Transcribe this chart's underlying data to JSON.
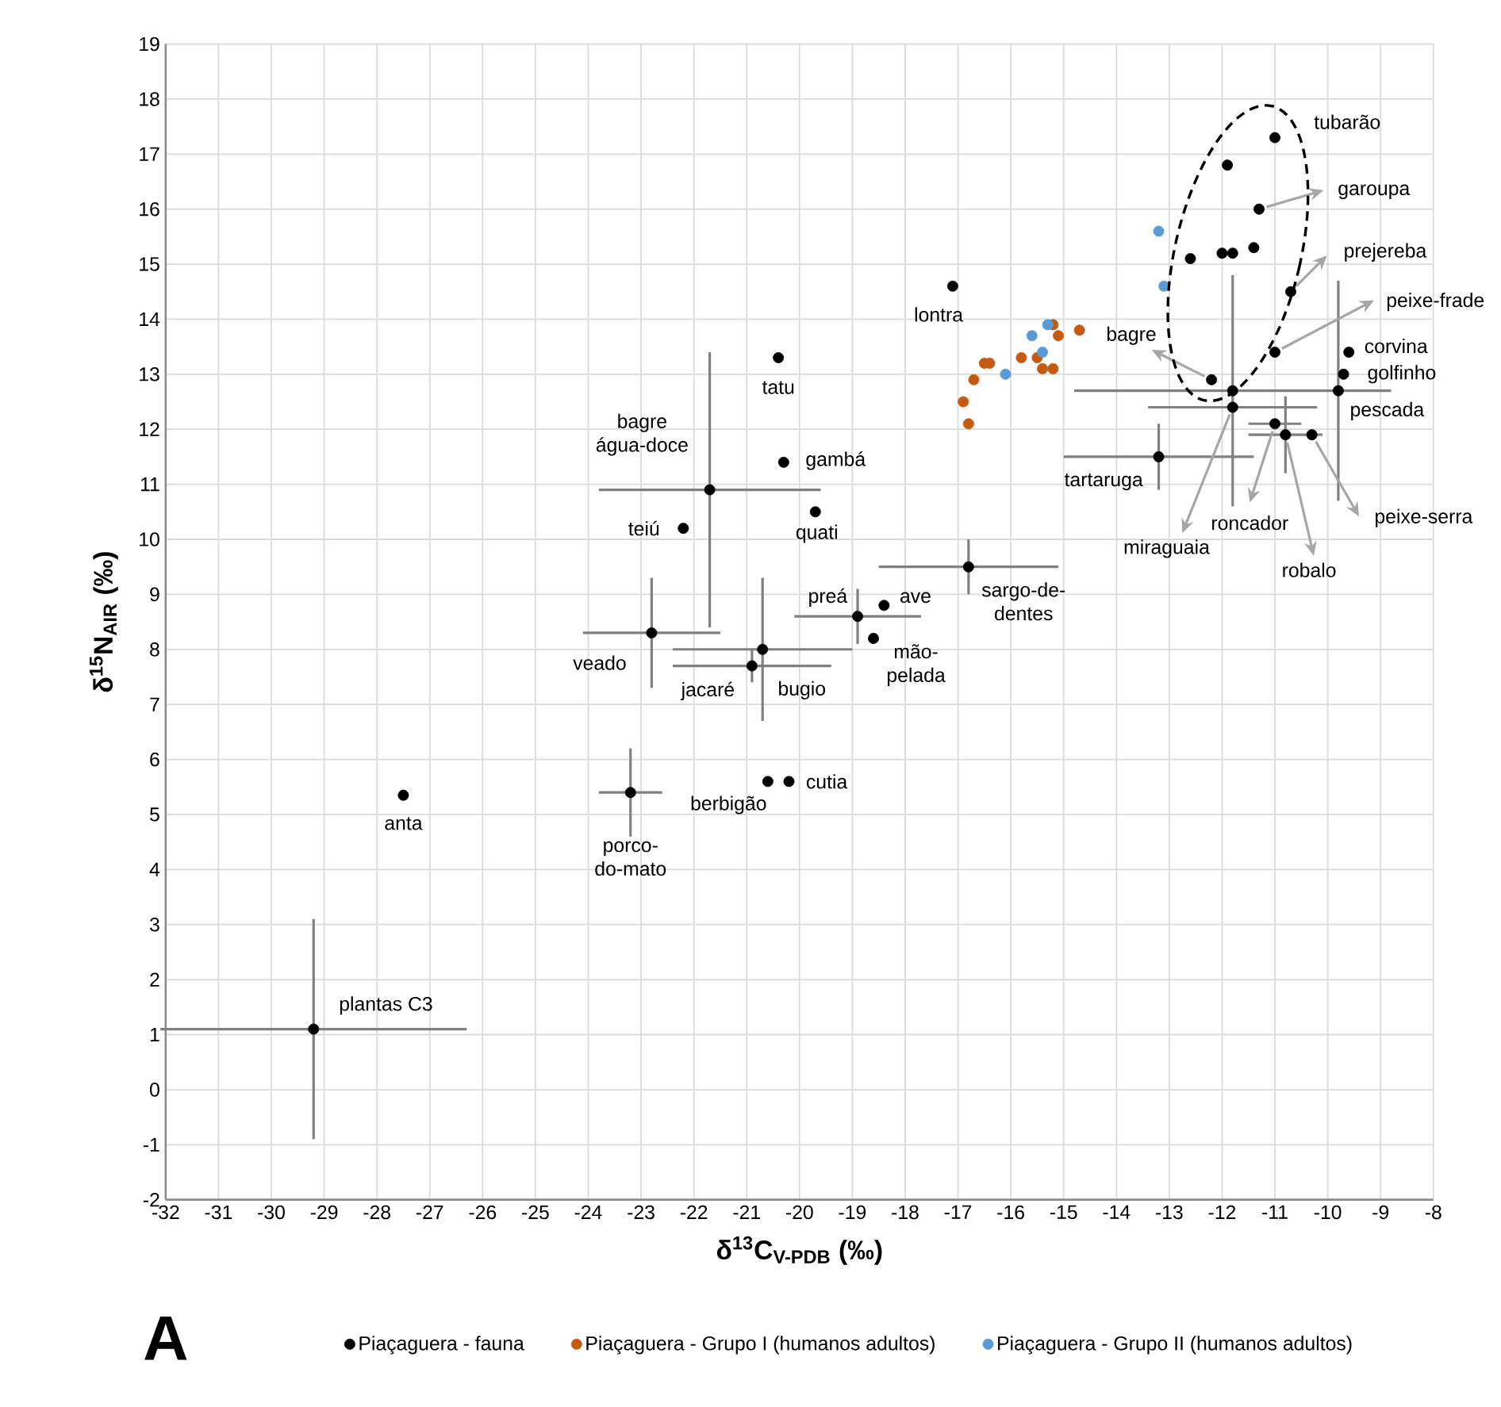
{
  "chart_data": {
    "type": "scatter",
    "title": "A",
    "xlabel": "δ$^{13}$C$_{V-PDB}$ (‰)",
    "ylabel": "δ$^{15}$N$_{AIR}$ (‰)",
    "xlim": [
      -32,
      -8
    ],
    "ylim": [
      -2,
      19
    ],
    "xticks": [
      -32,
      -31,
      -30,
      -29,
      -28,
      -27,
      -26,
      -25,
      -24,
      -23,
      -22,
      -21,
      -20,
      -19,
      -18,
      -17,
      -16,
      -15,
      -14,
      -13,
      -12,
      -11,
      -10,
      -9,
      -8
    ],
    "yticks": [
      -2,
      -1,
      0,
      1,
      2,
      3,
      4,
      5,
      6,
      7,
      8,
      9,
      10,
      11,
      12,
      13,
      14,
      15,
      16,
      17,
      18,
      19
    ],
    "grid": true,
    "legend": "bottom",
    "marker": "circle",
    "series": [
      {
        "name": "Piaçaguera - fauna",
        "color": "#000000",
        "x": [
          -27.5,
          -29.2,
          -23.2,
          -20.6,
          -20.2,
          -20.9,
          -20.7,
          -22.8,
          -21.7,
          -22.2,
          -20.4,
          -20.3,
          -19.7,
          -18.9,
          -18.4,
          -18.6,
          -16.8,
          -17.1,
          -13.2,
          -11.8,
          -11.8,
          -11.0,
          -10.8,
          -10.3,
          -9.8,
          -9.7,
          -9.6,
          -11.0,
          -12.2,
          -10.7,
          -11.3,
          -11.0,
          -11.9,
          -12.6,
          -12.0,
          -11.8,
          -11.4
        ],
        "values": [
          5.35,
          1.1,
          5.4,
          5.6,
          5.6,
          7.7,
          8.0,
          8.3,
          10.9,
          10.2,
          13.3,
          11.4,
          10.5,
          8.6,
          8.8,
          8.2,
          9.5,
          14.6,
          11.5,
          12.7,
          12.4,
          12.1,
          11.9,
          11.9,
          12.7,
          13.0,
          13.4,
          13.4,
          12.9,
          14.5,
          16.0,
          17.3,
          16.8,
          15.1,
          15.2,
          15.2,
          15.3
        ],
        "xerrors": [
          null,
          2.9,
          0.6,
          null,
          null,
          1.5,
          1.7,
          1.3,
          2.1,
          null,
          null,
          null,
          null,
          1.2,
          null,
          null,
          1.7,
          null,
          1.8,
          3.0,
          1.6,
          0.5,
          0.7,
          null,
          null,
          null,
          null,
          null,
          null,
          null,
          null,
          null,
          null,
          null,
          null,
          null,
          null
        ],
        "errors": [
          null,
          2.0,
          0.8,
          null,
          null,
          0.3,
          1.3,
          1.0,
          2.5,
          null,
          null,
          null,
          null,
          0.5,
          null,
          null,
          0.5,
          null,
          0.6,
          2.1,
          null,
          null,
          0.7,
          null,
          2.0,
          null,
          null,
          null,
          null,
          null,
          null,
          null,
          null,
          null,
          null,
          null,
          null
        ]
      },
      {
        "name": "Piaçaguera - Grupo I (humanos adultos)",
        "color": "#c55a11",
        "x": [
          -16.9,
          -16.8,
          -16.7,
          -16.5,
          -16.4,
          -15.8,
          -15.5,
          -15.4,
          -15.2,
          -15.2,
          -15.1,
          -14.7
        ],
        "values": [
          12.5,
          12.1,
          12.9,
          13.2,
          13.2,
          13.3,
          13.3,
          13.1,
          13.1,
          13.9,
          13.7,
          13.8
        ]
      },
      {
        "name": "Piaçaguera - Grupo II (humanos adultos)",
        "color": "#5b9bd5",
        "x": [
          -16.1,
          -15.6,
          -15.4,
          -15.3,
          -13.2,
          -13.1
        ],
        "values": [
          13.0,
          13.7,
          13.4,
          13.9,
          15.6,
          14.6
        ]
      }
    ],
    "annotations": [
      {
        "text": "tubarão",
        "x": -11.0,
        "y": 17.3
      },
      {
        "text": "garoupa",
        "x": -11.3,
        "y": 16.0
      },
      {
        "text": "prejereba",
        "x": -10.7,
        "y": 14.5
      },
      {
        "text": "peixe-frade",
        "x": -11.0,
        "y": 13.4
      },
      {
        "text": "corvina",
        "x": -9.6,
        "y": 13.4
      },
      {
        "text": "golfinho",
        "x": -9.7,
        "y": 13.0
      },
      {
        "text": "pescada",
        "x": -9.8,
        "y": 12.7
      },
      {
        "text": "bagre",
        "x": -12.2,
        "y": 12.9
      },
      {
        "text": "miraguaia",
        "x": -11.8,
        "y": 12.4
      },
      {
        "text": "roncador",
        "x": -11.0,
        "y": 12.1
      },
      {
        "text": "robalo",
        "x": -10.8,
        "y": 11.9
      },
      {
        "text": "peixe-serra",
        "x": -10.3,
        "y": 11.9
      },
      {
        "text": "tartaruga",
        "x": -13.2,
        "y": 11.5
      },
      {
        "text": "lontra",
        "x": -17.1,
        "y": 14.6
      },
      {
        "text": "tatu",
        "x": -20.4,
        "y": 13.3
      },
      {
        "text": "bagre água-doce",
        "x": -21.7,
        "y": 10.9
      },
      {
        "text": "gambá",
        "x": -20.3,
        "y": 11.4
      },
      {
        "text": "teiú",
        "x": -22.2,
        "y": 10.2
      },
      {
        "text": "quati",
        "x": -19.7,
        "y": 10.5
      },
      {
        "text": "preá",
        "x": -18.9,
        "y": 8.6
      },
      {
        "text": "ave",
        "x": -18.4,
        "y": 8.8
      },
      {
        "text": "mão-pelada",
        "x": -18.6,
        "y": 8.2
      },
      {
        "text": "sargo-de-dentes",
        "x": -16.8,
        "y": 9.5
      },
      {
        "text": "veado",
        "x": -22.8,
        "y": 8.3
      },
      {
        "text": "jacaré",
        "x": -20.9,
        "y": 7.7
      },
      {
        "text": "bugio",
        "x": -20.7,
        "y": 8.0
      },
      {
        "text": "berbigão",
        "x": -20.6,
        "y": 5.6
      },
      {
        "text": "cutia",
        "x": -20.2,
        "y": 5.6
      },
      {
        "text": "porco-do-mato",
        "x": -23.2,
        "y": 5.4
      },
      {
        "text": "anta",
        "x": -27.5,
        "y": 5.35
      },
      {
        "text": "plantas C3",
        "x": -29.2,
        "y": 1.1
      }
    ]
  }
}
